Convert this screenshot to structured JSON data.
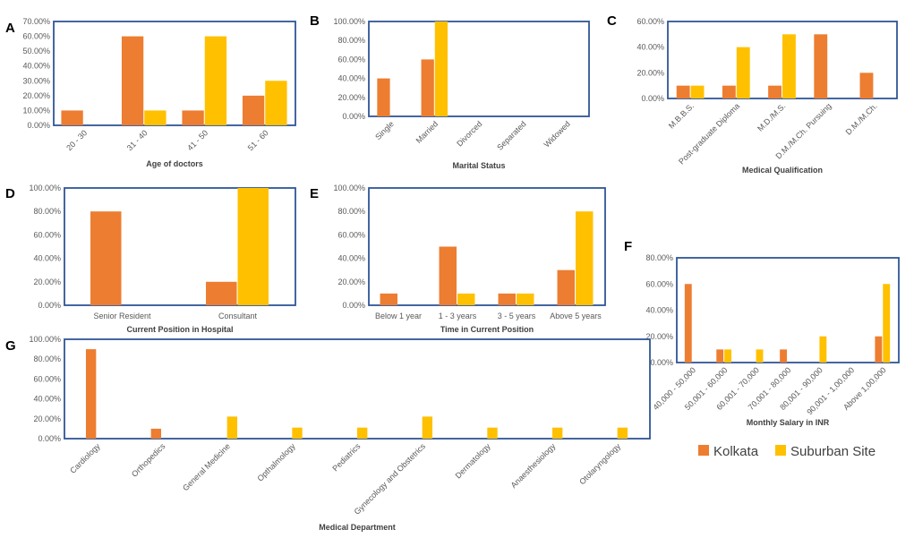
{
  "colors": {
    "kolkata": "#ED7D31",
    "suburban": "#FFC000",
    "frame": "#2F5597",
    "tick": "#595959",
    "title": "#404040"
  },
  "legend": {
    "kolkata": "Kolkata",
    "suburban": "Suburban Site"
  },
  "chart_data": [
    {
      "id": "A",
      "letter": "A",
      "type": "bar",
      "title": "",
      "xlabel": "Age of doctors",
      "ylabel": "",
      "categories": [
        "20 - 30",
        "31 - 40",
        "41 - 50",
        "51 - 60"
      ],
      "series": [
        {
          "name": "Kolkata",
          "values": [
            10,
            60,
            10,
            20
          ]
        },
        {
          "name": "Suburban Site",
          "values": [
            0,
            10,
            60,
            30
          ]
        }
      ],
      "ylim": [
        0,
        70
      ],
      "yticks": [
        0,
        10,
        20,
        30,
        40,
        50,
        60,
        70
      ],
      "ytick_labels": [
        "0.00%",
        "10.00%",
        "20.00%",
        "30.00%",
        "40.00%",
        "50.00%",
        "60.00%",
        "70.00%"
      ]
    },
    {
      "id": "B",
      "letter": "B",
      "type": "bar",
      "title": "",
      "xlabel": "Marital Status",
      "ylabel": "",
      "categories": [
        "Single",
        "Married",
        "Divorced",
        "Separated",
        "Widowed"
      ],
      "series": [
        {
          "name": "Kolkata",
          "values": [
            40,
            60,
            0,
            0,
            0
          ]
        },
        {
          "name": "Suburban Site",
          "values": [
            0,
            100,
            0,
            0,
            0
          ]
        }
      ],
      "ylim": [
        0,
        100
      ],
      "yticks": [
        0,
        20,
        40,
        60,
        80,
        100
      ],
      "ytick_labels": [
        "0.00%",
        "20.00%",
        "40.00%",
        "60.00%",
        "80.00%",
        "100.00%"
      ]
    },
    {
      "id": "C",
      "letter": "C",
      "type": "bar",
      "title": "",
      "xlabel": "Medical Qualification",
      "ylabel": "",
      "categories": [
        "M.B.B.S.",
        "Post-graduate Diploma",
        "M.D./M.S.",
        "D.M./M.Ch. Pursuing",
        "D.M./M.Ch."
      ],
      "series": [
        {
          "name": "Kolkata",
          "values": [
            10,
            10,
            10,
            50,
            20
          ]
        },
        {
          "name": "Suburban Site",
          "values": [
            10,
            40,
            50,
            0,
            0
          ]
        }
      ],
      "ylim": [
        0,
        60
      ],
      "yticks": [
        0,
        20,
        40,
        60
      ],
      "ytick_labels": [
        "0.00%",
        "20.00%",
        "40.00%",
        "60.00%"
      ]
    },
    {
      "id": "D",
      "letter": "D",
      "type": "bar",
      "title": "",
      "xlabel": "Current Position in Hospital",
      "ylabel": "",
      "categories": [
        "Senior Resident",
        "Consultant"
      ],
      "series": [
        {
          "name": "Kolkata",
          "values": [
            80,
            20
          ]
        },
        {
          "name": "Suburban Site",
          "values": [
            0,
            100
          ]
        }
      ],
      "ylim": [
        0,
        100
      ],
      "yticks": [
        0,
        20,
        40,
        60,
        80,
        100
      ],
      "ytick_labels": [
        "0.00%",
        "20.00%",
        "40.00%",
        "60.00%",
        "80.00%",
        "100.00%"
      ]
    },
    {
      "id": "E",
      "letter": "E",
      "type": "bar",
      "title": "",
      "xlabel": "Time in Current Position",
      "ylabel": "",
      "categories": [
        "Below 1 year",
        "1 - 3 years",
        "3 - 5 years",
        "Above 5 years"
      ],
      "series": [
        {
          "name": "Kolkata",
          "values": [
            10,
            50,
            10,
            30
          ]
        },
        {
          "name": "Suburban Site",
          "values": [
            0,
            10,
            10,
            80
          ]
        }
      ],
      "ylim": [
        0,
        100
      ],
      "yticks": [
        0,
        20,
        40,
        60,
        80,
        100
      ],
      "ytick_labels": [
        "0.00%",
        "20.00%",
        "40.00%",
        "60.00%",
        "80.00%",
        "100.00%"
      ]
    },
    {
      "id": "F",
      "letter": "F",
      "type": "bar",
      "title": "",
      "xlabel": "Monthly Salary in INR",
      "ylabel": "",
      "categories": [
        "40,000 - 50,000",
        "50,001 - 60,000",
        "60,001 - 70,000",
        "70,001 - 80,000",
        "80,001 - 90,000",
        "90,001 - 1,00,000",
        "Above 1,00,000"
      ],
      "series": [
        {
          "name": "Kolkata",
          "values": [
            60,
            10,
            0,
            10,
            0,
            0,
            20
          ]
        },
        {
          "name": "Suburban Site",
          "values": [
            0,
            10,
            10,
            0,
            20,
            0,
            60
          ]
        }
      ],
      "ylim": [
        0,
        80
      ],
      "yticks": [
        0,
        20,
        40,
        60,
        80
      ],
      "ytick_labels": [
        "0.00%",
        "20.00%",
        "40.00%",
        "60.00%",
        "80.00%"
      ]
    },
    {
      "id": "G",
      "letter": "G",
      "type": "bar",
      "title": "",
      "xlabel": "Medical Department",
      "ylabel": "",
      "categories": [
        "Cardiology",
        "Orthopedics",
        "General Medicine",
        "Opthalmology",
        "Pediatrics",
        "Gynecology and Obstetrics",
        "Dermatology",
        "Anaesthesiology",
        "Otolaryngology"
      ],
      "series": [
        {
          "name": "Kolkata",
          "values": [
            90,
            10,
            0,
            0,
            0,
            0,
            0,
            0,
            0
          ]
        },
        {
          "name": "Suburban Site",
          "values": [
            0,
            0,
            22.2,
            11.1,
            11.1,
            22.2,
            11.1,
            11.1,
            11.1
          ]
        }
      ],
      "ylim": [
        0,
        100
      ],
      "yticks": [
        0,
        20,
        40,
        60,
        80,
        100
      ],
      "ytick_labels": [
        "0.00%",
        "20.00%",
        "40.00%",
        "60.00%",
        "80.00%",
        "100.00%"
      ]
    }
  ]
}
